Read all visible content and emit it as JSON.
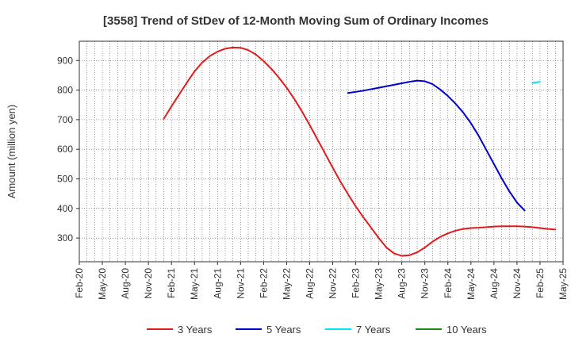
{
  "chart_data": {
    "type": "line",
    "title": "[3558]  Trend of StDev of 12-Month Moving Sum of Ordinary Incomes",
    "xlabel": "",
    "ylabel": "Amount (million yen)",
    "ylim": [
      220,
      965
    ],
    "yticks": [
      300,
      400,
      500,
      600,
      700,
      800,
      900
    ],
    "x_tick_labels": [
      "Feb-20",
      "May-20",
      "Aug-20",
      "Nov-20",
      "Feb-21",
      "May-21",
      "Aug-21",
      "Nov-21",
      "Feb-22",
      "May-22",
      "Aug-22",
      "Nov-22",
      "Feb-23",
      "May-23",
      "Aug-23",
      "Nov-23",
      "Feb-24",
      "May-24",
      "Aug-24",
      "Nov-24",
      "Feb-25",
      "May-25"
    ],
    "x_months": [
      "Feb-20",
      "Mar-20",
      "Apr-20",
      "May-20",
      "Jun-20",
      "Jul-20",
      "Aug-20",
      "Sep-20",
      "Oct-20",
      "Nov-20",
      "Dec-20",
      "Jan-21",
      "Feb-21",
      "Mar-21",
      "Apr-21",
      "May-21",
      "Jun-21",
      "Jul-21",
      "Aug-21",
      "Sep-21",
      "Oct-21",
      "Nov-21",
      "Dec-21",
      "Jan-22",
      "Feb-22",
      "Mar-22",
      "Apr-22",
      "May-22",
      "Jun-22",
      "Jul-22",
      "Aug-22",
      "Sep-22",
      "Oct-22",
      "Nov-22",
      "Dec-22",
      "Jan-23",
      "Feb-23",
      "Mar-23",
      "Apr-23",
      "May-23",
      "Jun-23",
      "Jul-23",
      "Aug-23",
      "Sep-23",
      "Oct-23",
      "Nov-23",
      "Dec-23",
      "Jan-24",
      "Feb-24",
      "Mar-24",
      "Apr-24",
      "May-24",
      "Jun-24",
      "Jul-24",
      "Aug-24",
      "Sep-24",
      "Oct-24",
      "Nov-24",
      "Dec-24",
      "Jan-25",
      "Feb-25",
      "Mar-25",
      "Apr-25",
      "May-25"
    ],
    "series": [
      {
        "name": "3 Years",
        "color": "#e31a1c",
        "start": "Jan-21",
        "values": [
          703,
          745,
          785,
          825,
          863,
          893,
          915,
          930,
          940,
          944,
          943,
          935,
          920,
          898,
          872,
          842,
          808,
          770,
          728,
          682,
          634,
          586,
          538,
          491,
          448,
          407,
          370,
          335,
          300,
          268,
          248,
          240,
          242,
          252,
          268,
          288,
          304,
          316,
          325,
          331,
          334,
          335,
          337,
          339,
          340,
          340,
          340,
          339,
          337,
          334,
          331,
          329
        ]
      },
      {
        "name": "5 Years",
        "color": "#0000cc",
        "start": "Jan-23",
        "values": [
          790,
          794,
          798,
          803,
          808,
          813,
          818,
          823,
          828,
          832,
          830,
          820,
          802,
          780,
          754,
          724,
          688,
          646,
          598,
          550,
          502,
          458,
          420,
          393
        ]
      },
      {
        "name": "7 Years",
        "color": "#00e5ee",
        "start": "Jan-25",
        "values": [
          824,
          828
        ]
      },
      {
        "name": "10 Years",
        "color": "#1a8a1a",
        "start": null,
        "values": []
      }
    ]
  }
}
